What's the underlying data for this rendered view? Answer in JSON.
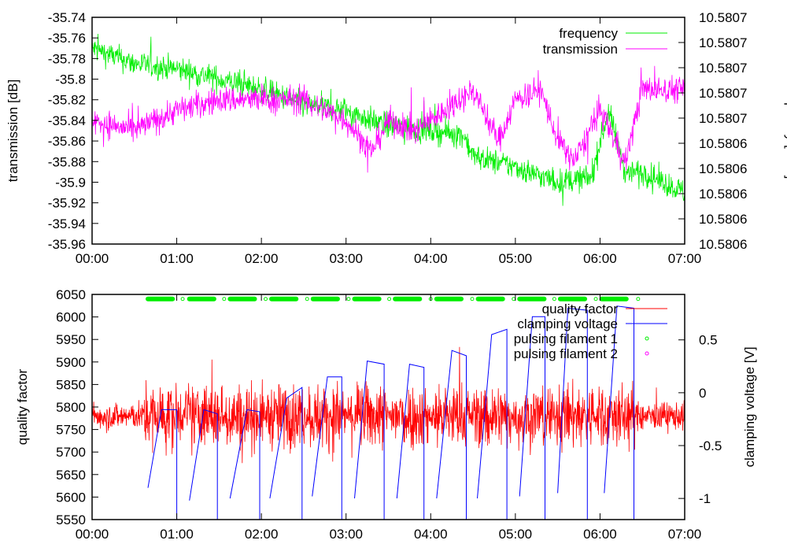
{
  "chart_data": [
    {
      "type": "line",
      "x_unit": "hours",
      "xlim": [
        0,
        7
      ],
      "xtick_labels": [
        "00:00",
        "01:00",
        "02:00",
        "03:00",
        "04:00",
        "05:00",
        "06:00",
        "07:00"
      ],
      "ylabel": "transmission [dB]",
      "ylim": [
        -35.96,
        -35.74
      ],
      "ytick_labels": [
        "-35.74",
        "-35.76",
        "-35.78",
        "-35.8",
        "-35.82",
        "-35.84",
        "-35.86",
        "-35.88",
        "-35.9",
        "-35.92",
        "-35.94",
        "-35.96"
      ],
      "y2label": "frequency [GHz]",
      "y2tick_labels": [
        "10.5807",
        "10.5807",
        "10.5807",
        "10.5807",
        "10.5807",
        "10.5806",
        "10.5806",
        "10.5806",
        "10.5806",
        "10.5806"
      ],
      "legend_position": "top-right",
      "series": [
        {
          "name": "frequency",
          "color": "#00ee00",
          "axis": "y2 (shown on left-axis scale)",
          "noise": 0.012,
          "x": [
            0,
            0.5,
            1,
            1.5,
            2,
            2.5,
            3,
            3.3,
            3.5,
            4,
            4.4,
            4.5,
            5,
            5.5,
            5.9,
            6.1,
            6.3,
            6.5,
            7
          ],
          "y": [
            -35.77,
            -35.785,
            -35.79,
            -35.8,
            -35.81,
            -35.825,
            -35.83,
            -35.84,
            -35.845,
            -35.85,
            -35.855,
            -35.875,
            -35.885,
            -35.9,
            -35.895,
            -35.83,
            -35.89,
            -35.89,
            -35.91
          ]
        },
        {
          "name": "transmission",
          "color": "#ff00ff",
          "axis": "y1",
          "noise": 0.013,
          "x": [
            0,
            0.5,
            1,
            1.5,
            2,
            2.5,
            3,
            3.3,
            3.5,
            3.8,
            4,
            4.5,
            4.8,
            5,
            5.3,
            5.5,
            5.7,
            6,
            6.3,
            6.5,
            7
          ],
          "y": [
            -35.84,
            -35.85,
            -35.83,
            -35.82,
            -35.82,
            -35.82,
            -35.84,
            -35.87,
            -35.84,
            -35.85,
            -35.84,
            -35.81,
            -35.86,
            -35.82,
            -35.81,
            -35.86,
            -35.88,
            -35.83,
            -35.88,
            -35.81,
            -35.81
          ]
        }
      ]
    },
    {
      "type": "line",
      "x_unit": "hours",
      "xlim": [
        0,
        7
      ],
      "xtick_labels": [
        "00:00",
        "01:00",
        "02:00",
        "03:00",
        "04:00",
        "05:00",
        "06:00",
        "07:00"
      ],
      "ylabel": "quality factor",
      "ylim": [
        5550,
        6050
      ],
      "ytick_labels": [
        "5550",
        "5600",
        "5650",
        "5700",
        "5750",
        "5800",
        "5850",
        "5900",
        "5950",
        "6000",
        "6050"
      ],
      "y2label": "clamping voltage [V]",
      "y2lim": [
        -1.2,
        0.93
      ],
      "y2tick_labels": [
        "0.5",
        "0",
        "-0.5",
        "-1"
      ],
      "y2tick_values": [
        0.5,
        0,
        -0.5,
        -1
      ],
      "legend_position": "top-right",
      "series": [
        {
          "name": "quality factor",
          "color": "#ff0000",
          "mean": 5780,
          "noise": 30,
          "burst_noise": 70
        },
        {
          "name": "clamping voltage",
          "color": "#0000ff",
          "segments": [
            [
              [
                0.66,
                -0.9
              ],
              [
                0.82,
                -0.16
              ],
              [
                1.0,
                -0.16
              ]
            ],
            [
              [
                1.15,
                -1.02
              ],
              [
                1.32,
                -0.16
              ],
              [
                1.48,
                -0.2
              ]
            ],
            [
              [
                1.63,
                -1.0
              ],
              [
                1.83,
                -0.16
              ],
              [
                1.98,
                -0.18
              ]
            ],
            [
              [
                2.1,
                -1.0
              ],
              [
                2.3,
                -0.05
              ],
              [
                2.48,
                0.05
              ]
            ],
            [
              [
                2.6,
                -0.98
              ],
              [
                2.78,
                0.15
              ],
              [
                2.95,
                0.15
              ]
            ],
            [
              [
                3.1,
                -1.0
              ],
              [
                3.25,
                0.3
              ],
              [
                3.45,
                0.27
              ]
            ],
            [
              [
                3.6,
                -1.0
              ],
              [
                3.75,
                0.27
              ],
              [
                3.92,
                0.24
              ]
            ],
            [
              [
                4.07,
                -1.0
              ],
              [
                4.25,
                0.4
              ],
              [
                4.42,
                0.35
              ]
            ],
            [
              [
                4.55,
                -1.0
              ],
              [
                4.72,
                0.55
              ],
              [
                4.9,
                0.6
              ]
            ],
            [
              [
                5.05,
                -0.98
              ],
              [
                5.2,
                0.72
              ],
              [
                5.35,
                0.72
              ]
            ],
            [
              [
                5.5,
                -0.95
              ],
              [
                5.62,
                0.8
              ],
              [
                5.85,
                0.78
              ]
            ],
            [
              [
                6.05,
                -0.95
              ],
              [
                6.2,
                0.82
              ],
              [
                6.4,
                0.8
              ]
            ]
          ]
        },
        {
          "name": "pulsing filament 1",
          "color": "#00ee00",
          "y_value": 6040,
          "pulses_start": [
            0.66,
            1.15,
            1.63,
            2.12,
            2.61,
            3.1,
            3.58,
            4.07,
            4.56,
            5.05,
            5.53,
            6.02
          ],
          "pulse_length": 0.29,
          "markers": [
            1.07,
            1.56,
            2.05,
            2.54,
            3.03,
            3.51,
            4.0,
            4.49,
            4.98,
            5.46,
            5.95,
            6.45
          ]
        },
        {
          "name": "pulsing filament 2",
          "color": "#ff00ff"
        }
      ]
    }
  ]
}
